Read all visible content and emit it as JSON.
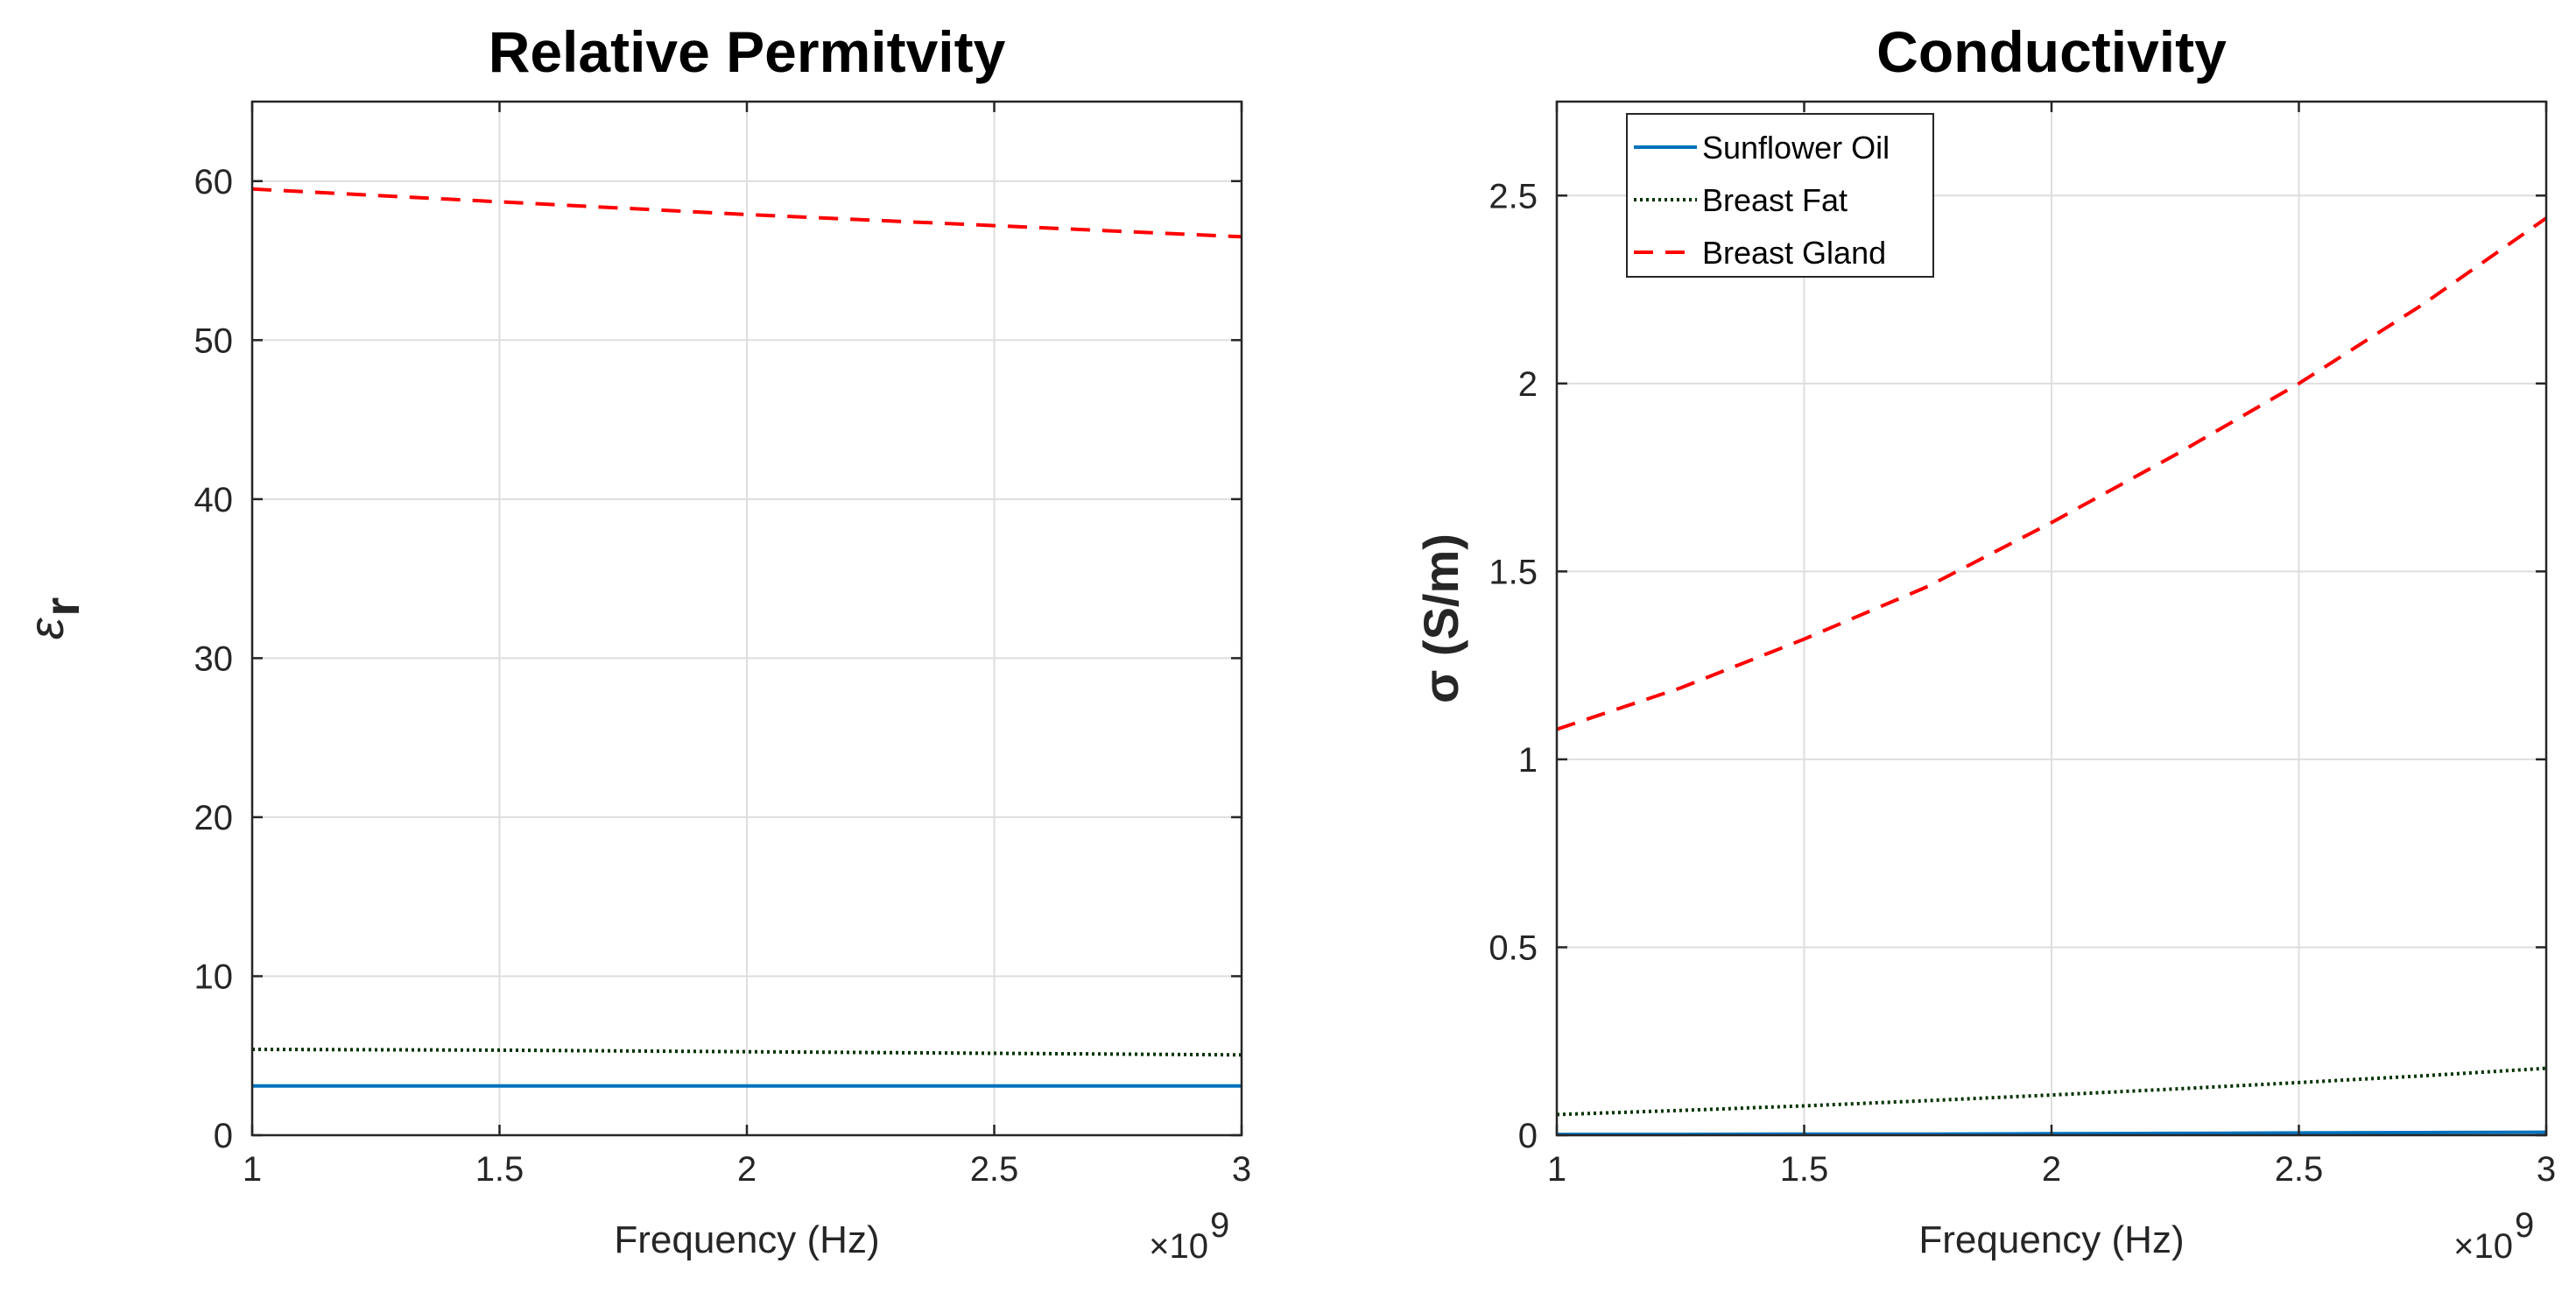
{
  "chart_data": [
    {
      "type": "line",
      "title": "Relative Permitvity",
      "xlabel": "Frequency (Hz)",
      "ylabel": "ε_r",
      "ylabel_symbol": "ε",
      "ylabel_sub": "r",
      "x_exponent_label": "×10",
      "x_exponent_power": "9",
      "xlim": [
        1,
        3
      ],
      "ylim": [
        0,
        65
      ],
      "xticks": [
        1,
        1.5,
        2,
        2.5,
        3
      ],
      "xtick_labels": [
        "1",
        "1.5",
        "2",
        "2.5",
        "3"
      ],
      "yticks": [
        0,
        10,
        20,
        30,
        40,
        50,
        60
      ],
      "ytick_labels": [
        "0",
        "10",
        "20",
        "30",
        "40",
        "50",
        "60"
      ],
      "grid": true,
      "x": [
        1.0,
        1.5,
        2.0,
        2.5,
        3.0
      ],
      "series": [
        {
          "name": "Sunflower Oil",
          "color": "#0072BD",
          "style": "solid",
          "values": [
            3.1,
            3.1,
            3.1,
            3.1,
            3.1
          ]
        },
        {
          "name": "Breast Fat",
          "color": "#003300",
          "style": "dotted",
          "values": [
            5.4,
            5.35,
            5.25,
            5.15,
            5.05
          ]
        },
        {
          "name": "Breast Gland",
          "color": "#ff0000",
          "style": "dashed",
          "values": [
            59.5,
            58.7,
            57.9,
            57.2,
            56.5
          ]
        }
      ]
    },
    {
      "type": "line",
      "title": "Conductivity",
      "xlabel": "Frequency (Hz)",
      "ylabel": "σ (S/m)",
      "x_exponent_label": "×10",
      "x_exponent_power": "9",
      "xlim": [
        1,
        3
      ],
      "ylim": [
        0,
        2.75
      ],
      "xticks": [
        1,
        1.5,
        2,
        2.5,
        3
      ],
      "xtick_labels": [
        "1",
        "1.5",
        "2",
        "2.5",
        "3"
      ],
      "yticks": [
        0,
        0.5,
        1,
        1.5,
        2,
        2.5
      ],
      "ytick_labels": [
        "0",
        "0.5",
        "1",
        "1.5",
        "2",
        "2.5"
      ],
      "grid": true,
      "legend": "top-left",
      "x": [
        1.0,
        1.25,
        1.5,
        1.75,
        2.0,
        2.25,
        2.5,
        2.75,
        3.0
      ],
      "series": [
        {
          "name": "Sunflower Oil",
          "color": "#0072BD",
          "style": "solid",
          "values": [
            0.002,
            0.002,
            0.003,
            0.003,
            0.004,
            0.005,
            0.006,
            0.007,
            0.008
          ]
        },
        {
          "name": "Breast Fat",
          "color": "#003300",
          "style": "dotted",
          "values": [
            0.055,
            0.066,
            0.078,
            0.092,
            0.107,
            0.123,
            0.14,
            0.158,
            0.178
          ]
        },
        {
          "name": "Breast Gland",
          "color": "#ff0000",
          "style": "dashed",
          "values": [
            1.08,
            1.19,
            1.32,
            1.46,
            1.63,
            1.81,
            2.0,
            2.21,
            2.44
          ]
        }
      ]
    }
  ]
}
